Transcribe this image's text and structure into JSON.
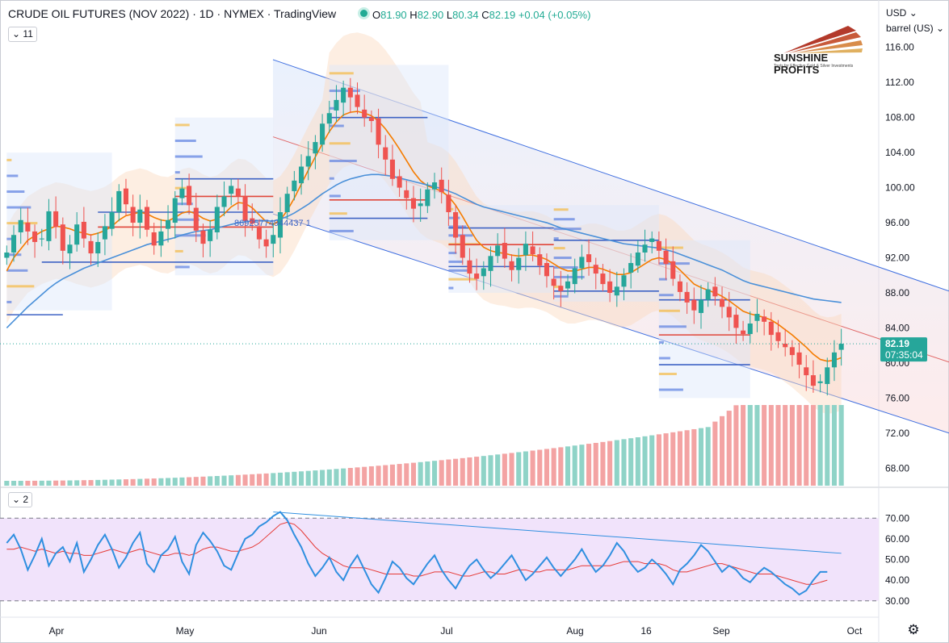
{
  "header": {
    "title": "CRUDE OIL FUTURES (NOV 2022) · 1D · NYMEX · TradingView",
    "ohlc": {
      "o_label": "O",
      "o": "81.90",
      "h_label": "H",
      "h": "82.90",
      "l_label": "L",
      "l": "80.34",
      "c_label": "C",
      "c": "82.19",
      "change": "+0.04 (+0.05%)"
    },
    "indicator_count_main": "11",
    "indicator_count_rsi": "2"
  },
  "axis": {
    "currency": "USD",
    "unit": "barrel (US)",
    "price_ticks": [
      "116.00",
      "112.00",
      "108.00",
      "104.00",
      "100.00",
      "96.00",
      "92.00",
      "88.00",
      "84.00",
      "80.00",
      "76.00",
      "72.00",
      "68.00"
    ],
    "rsi_ticks": [
      "70.00",
      "60.00",
      "50.00",
      "40.00",
      "30.00"
    ],
    "time_ticks": [
      "Apr",
      "May",
      "Jun",
      "Jul",
      "Aug",
      "16",
      "Sep",
      "Oct"
    ],
    "last_price": "82.19",
    "countdown": "07:35:04"
  },
  "logo": {
    "name": "SUNSHINE PROFITS",
    "tagline": "Tools for Effective Gold & Silver Investments"
  },
  "annotation_text": "86925774944437 1",
  "chart_data": [
    {
      "type": "candlestick",
      "title": "CRUDE OIL FUTURES (NOV 2022)",
      "ylim": [
        66,
        118
      ],
      "x_range": [
        "Mar 21 2022",
        "Oct 5 2022"
      ],
      "last_close": 82.19,
      "series": [
        {
          "name": "price",
          "values": [
            92.6,
            94.6,
            96.3,
            95.0,
            93.8,
            94.2,
            97.3,
            95.5,
            92.8,
            93.5,
            95.8,
            94.2,
            92.5,
            93.8,
            95.6,
            97.2,
            99.6,
            98.1,
            96.0,
            97.5,
            95.2,
            93.4,
            95.0,
            96.3,
            98.8,
            99.9,
            98.0,
            95.1,
            93.6,
            95.2,
            97.8,
            99.0,
            100.2,
            99.0,
            96.2,
            95.9,
            94.1,
            93.3,
            94.6,
            97.2,
            99.3,
            100.8,
            102.4,
            103.6,
            105.2,
            107.3,
            108.5,
            110.0,
            111.4,
            110.3,
            109.2,
            108.0,
            107.6,
            104.9,
            103.2,
            101.0,
            100.0,
            98.8,
            97.6,
            98.2,
            99.8,
            100.6,
            99.5,
            97.2,
            94.3,
            92.0,
            90.2,
            89.6,
            90.8,
            92.2,
            93.4,
            91.9,
            90.6,
            92.0,
            93.6,
            92.4,
            91.1,
            89.9,
            88.8,
            88.2,
            89.3,
            90.8,
            92.1,
            91.5,
            90.2,
            89.0,
            88.0,
            88.7,
            90.0,
            91.4,
            92.6,
            93.5,
            94.2,
            92.8,
            91.3,
            89.6,
            88.1,
            86.9,
            86.0,
            87.2,
            88.4,
            87.6,
            86.4,
            85.2,
            84.0,
            83.3,
            84.5,
            85.6,
            84.7,
            83.2,
            82.5,
            81.8,
            80.9,
            79.8,
            78.6,
            77.4,
            77.9,
            79.5,
            81.2,
            82.19
          ]
        }
      ],
      "moving_averages": [
        {
          "name": "fast",
          "color": "#f57c00",
          "values": [
            90.5,
            92.0,
            93.0,
            94.0,
            94.5,
            95.0,
            95.3,
            95.6,
            95.5,
            95.3,
            95.0,
            94.8,
            94.6,
            94.8,
            95.1,
            95.6,
            96.3,
            96.8,
            97.0,
            97.2,
            97.0,
            96.6,
            96.3,
            96.2,
            96.6,
            97.1,
            97.3,
            97.0,
            96.5,
            96.2,
            96.4,
            97.0,
            97.8,
            98.3,
            98.2,
            97.7,
            96.9,
            96.1,
            95.8,
            96.3,
            97.4,
            98.8,
            100.4,
            102.0,
            103.5,
            105.0,
            106.4,
            107.5,
            108.3,
            108.6,
            108.7,
            108.5,
            108.2,
            107.6,
            106.7,
            105.6,
            104.4,
            103.1,
            101.8,
            100.8,
            100.2,
            99.9,
            99.6,
            99.0,
            98.0,
            96.7,
            95.3,
            94.0,
            93.2,
            92.8,
            92.6,
            92.5,
            92.3,
            92.2,
            92.3,
            92.3,
            92.1,
            91.8,
            91.3,
            90.8,
            90.5,
            90.5,
            90.7,
            90.9,
            90.9,
            90.7,
            90.4,
            90.1,
            90.1,
            90.3,
            90.8,
            91.3,
            91.8,
            92.0,
            91.8,
            91.3,
            90.6,
            89.8,
            89.0,
            88.6,
            88.3,
            88.0,
            87.6,
            87.1,
            86.5,
            85.9,
            85.6,
            85.4,
            85.2,
            84.9,
            84.4,
            83.8,
            83.2,
            82.5,
            81.8,
            81.0,
            80.4,
            80.2,
            80.3,
            80.6
          ]
        },
        {
          "name": "slow",
          "color": "#4a90d9",
          "values": [
            84.0,
            84.8,
            85.6,
            86.4,
            87.1,
            87.8,
            88.5,
            89.1,
            89.6,
            90.0,
            90.4,
            90.8,
            91.1,
            91.4,
            91.7,
            92.0,
            92.3,
            92.6,
            92.9,
            93.2,
            93.5,
            93.7,
            93.9,
            94.1,
            94.3,
            94.6,
            94.8,
            95.0,
            95.1,
            95.2,
            95.4,
            95.6,
            95.8,
            96.0,
            96.1,
            96.2,
            96.2,
            96.2,
            96.2,
            96.4,
            96.7,
            97.1,
            97.6,
            98.1,
            98.7,
            99.3,
            99.8,
            100.3,
            100.7,
            101.0,
            101.2,
            101.4,
            101.5,
            101.5,
            101.4,
            101.3,
            101.1,
            100.9,
            100.7,
            100.5,
            100.3,
            100.1,
            99.9,
            99.6,
            99.3,
            98.9,
            98.5,
            98.1,
            97.8,
            97.6,
            97.4,
            97.2,
            97.0,
            96.8,
            96.6,
            96.4,
            96.2,
            96.0,
            95.7,
            95.4,
            95.2,
            95.0,
            94.8,
            94.6,
            94.4,
            94.2,
            94.0,
            93.8,
            93.6,
            93.5,
            93.4,
            93.3,
            93.2,
            93.1,
            92.9,
            92.7,
            92.4,
            92.1,
            91.8,
            91.5,
            91.2,
            90.9,
            90.6,
            90.2,
            89.8,
            89.4,
            89.1,
            88.9,
            88.7,
            88.5,
            88.3,
            88.1,
            87.9,
            87.7,
            87.5,
            87.3,
            87.2,
            87.1,
            87.0,
            86.9
          ]
        }
      ],
      "channel": {
        "upper_start": 114.6,
        "upper_end": 88.2,
        "lower_start": 97.0,
        "lower_end": 72.0
      }
    },
    {
      "type": "line",
      "title": "RSI",
      "ylim": [
        26,
        74
      ],
      "levels": [
        70,
        30
      ],
      "series": [
        {
          "name": "rsi",
          "values": [
            58,
            62,
            55,
            45,
            52,
            60,
            47,
            53,
            56,
            49,
            58,
            44,
            50,
            57,
            62,
            55,
            46,
            51,
            58,
            63,
            48,
            44,
            52,
            55,
            61,
            49,
            43,
            57,
            63,
            59,
            54,
            47,
            45,
            53,
            60,
            62,
            66,
            68,
            71,
            73,
            69,
            62,
            56,
            48,
            42,
            46,
            51,
            44,
            40,
            47,
            52,
            45,
            38,
            34,
            41,
            49,
            46,
            41,
            38,
            43,
            48,
            52,
            45,
            40,
            36,
            42,
            47,
            50,
            45,
            41,
            44,
            48,
            52,
            46,
            40,
            43,
            47,
            51,
            46,
            42,
            46,
            50,
            55,
            49,
            44,
            47,
            52,
            58,
            54,
            48,
            44,
            46,
            50,
            47,
            43,
            38,
            45,
            48,
            52,
            57,
            54,
            49,
            44,
            47,
            45,
            41,
            39,
            43,
            46,
            44,
            41,
            38,
            36,
            33,
            35,
            40,
            44,
            44
          ]
        },
        {
          "name": "rsi-ma",
          "values": [
            55,
            55,
            56,
            55,
            54,
            55,
            54,
            53,
            54,
            53,
            53,
            52,
            52,
            53,
            54,
            55,
            54,
            53,
            54,
            55,
            54,
            53,
            52,
            52,
            53,
            53,
            52,
            53,
            55,
            56,
            56,
            55,
            54,
            54,
            55,
            56,
            58,
            61,
            64,
            67,
            68,
            67,
            64,
            60,
            56,
            53,
            51,
            49,
            47,
            46,
            46,
            46,
            45,
            44,
            43,
            43,
            43,
            43,
            42,
            42,
            43,
            44,
            44,
            44,
            43,
            42,
            42,
            43,
            44,
            44,
            43,
            43,
            44,
            45,
            45,
            44,
            44,
            45,
            45,
            45,
            45,
            46,
            47,
            47,
            47,
            47,
            47,
            48,
            49,
            49,
            49,
            48,
            48,
            48,
            47,
            45,
            44,
            44,
            45,
            46,
            47,
            48,
            48,
            47,
            46,
            45,
            44,
            43,
            43,
            43,
            42,
            41,
            40,
            39,
            38,
            38,
            39,
            40
          ]
        }
      ],
      "trendline": {
        "start": 73,
        "end": 53
      }
    }
  ]
}
